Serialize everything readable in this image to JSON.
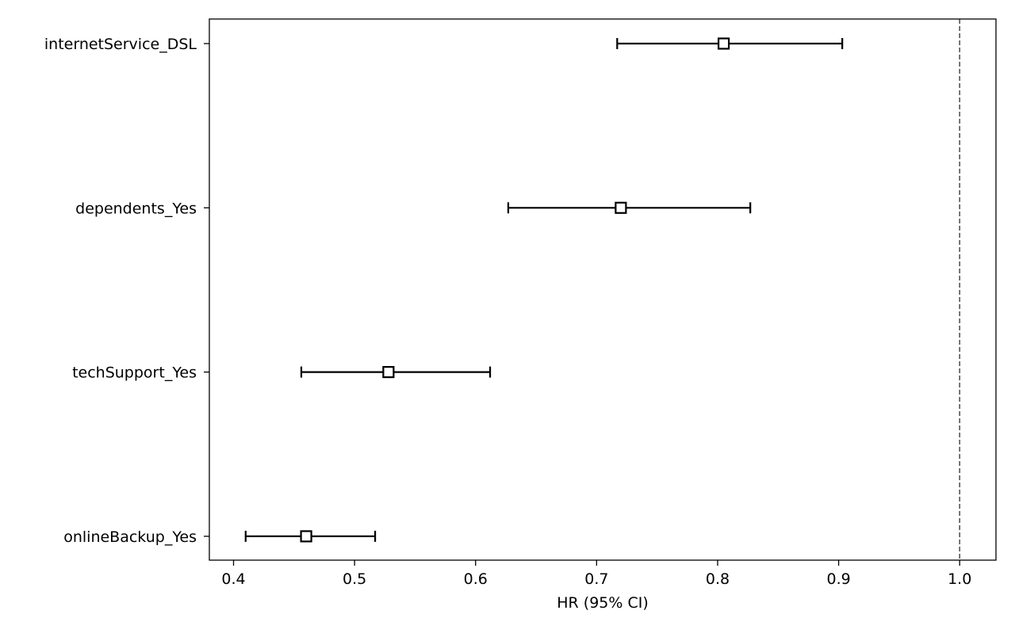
{
  "chart_data": {
    "type": "forest",
    "title": "",
    "xlabel": "HR (95% CI)",
    "ylabel": "",
    "xlim": [
      0.38,
      1.03
    ],
    "x_ticks": [
      0.4,
      0.5,
      0.6,
      0.7,
      0.8,
      0.9,
      1.0
    ],
    "x_tick_labels": [
      "0.4",
      "0.5",
      "0.6",
      "0.7",
      "0.8",
      "0.9",
      "1.0"
    ],
    "reference_line": 1.0,
    "grid": false,
    "rows": [
      {
        "label": "internetService_DSL",
        "hr": 0.805,
        "lower": 0.717,
        "upper": 0.903
      },
      {
        "label": "dependents_Yes",
        "hr": 0.72,
        "lower": 0.627,
        "upper": 0.827
      },
      {
        "label": "techSupport_Yes",
        "hr": 0.528,
        "lower": 0.456,
        "upper": 0.612
      },
      {
        "label": "onlineBackup_Yes",
        "hr": 0.46,
        "lower": 0.41,
        "upper": 0.517
      }
    ]
  }
}
